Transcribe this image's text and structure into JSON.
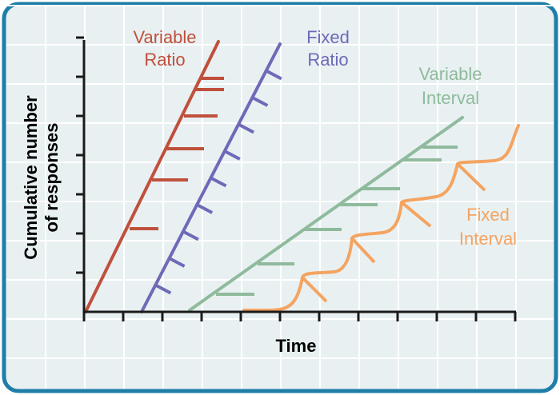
{
  "chart_data": {
    "type": "line",
    "title": "",
    "xlabel": "Time",
    "ylabel_line1": "Cumulative number",
    "ylabel_line2": "of responses",
    "grid": true,
    "legend": "labels placed next to each curve",
    "colors": {
      "frame": "#1f7ea8",
      "background": "#e8f0f2",
      "grid": "#ffffff",
      "axis": "#1a1a1a"
    },
    "series": [
      {
        "key": "vr",
        "label_line1": "Variable",
        "label_line2": "Ratio",
        "color": "#c0503c",
        "shape": "steep straight cumulative line; reinforcement ticks at irregular intervals"
      },
      {
        "key": "fr",
        "label_line1": "Fixed",
        "label_line2": "Ratio",
        "color": "#6e6ab8",
        "shape": "steep straight cumulative line; reinforcement ticks at regular intervals"
      },
      {
        "key": "vi",
        "label_line1": "Variable",
        "label_line2": "Interval",
        "color": "#8fbb9c",
        "shape": "moderate steady slope; reinforcement ticks at irregular intervals"
      },
      {
        "key": "fi",
        "label_line1": "Fixed",
        "label_line2": "Interval",
        "color": "#f4a461",
        "shape": "scalloped curve; response rate accelerates before each reinforcement"
      }
    ]
  }
}
